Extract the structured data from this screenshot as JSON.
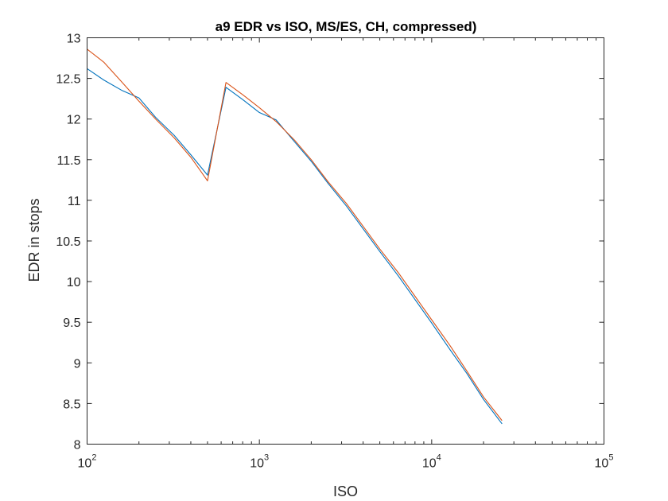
{
  "chart_data": {
    "type": "line",
    "title": "a9 EDR vs ISO, MS/ES, CH, compressed)",
    "xlabel": "ISO",
    "ylabel": "EDR in stops",
    "xscale": "log",
    "xlim": [
      100,
      100000
    ],
    "ylim": [
      8,
      13
    ],
    "grid": false,
    "legend": "none",
    "x_ticks": [
      {
        "value": 100,
        "base": "10",
        "exp": "2"
      },
      {
        "value": 1000,
        "base": "10",
        "exp": "3"
      },
      {
        "value": 10000,
        "base": "10",
        "exp": "4"
      },
      {
        "value": 100000,
        "base": "10",
        "exp": "5"
      }
    ],
    "y_ticks": [
      {
        "value": 8,
        "label": "8"
      },
      {
        "value": 8.5,
        "label": "8.5"
      },
      {
        "value": 9,
        "label": "9"
      },
      {
        "value": 9.5,
        "label": "9.5"
      },
      {
        "value": 10,
        "label": "10"
      },
      {
        "value": 10.5,
        "label": "10.5"
      },
      {
        "value": 11,
        "label": "11"
      },
      {
        "value": 11.5,
        "label": "11.5"
      },
      {
        "value": 12,
        "label": "12"
      },
      {
        "value": 12.5,
        "label": "12.5"
      },
      {
        "value": 13,
        "label": "13"
      }
    ],
    "series": [
      {
        "color": "#0072BD",
        "x": [
          100,
          125,
          160,
          200,
          250,
          320,
          400,
          500,
          640,
          800,
          1000,
          1250,
          1600,
          2000,
          2500,
          3200,
          4000,
          5000,
          6400,
          8000,
          10000,
          12800,
          16000,
          20000,
          25600
        ],
        "y": [
          12.62,
          12.48,
          12.35,
          12.26,
          12.02,
          11.8,
          11.56,
          11.31,
          12.39,
          12.24,
          12.08,
          11.99,
          11.72,
          11.48,
          11.21,
          10.93,
          10.65,
          10.37,
          10.07,
          9.78,
          9.49,
          9.16,
          8.87,
          8.55,
          8.25
        ]
      },
      {
        "color": "#D95319",
        "x": [
          100,
          125,
          160,
          200,
          250,
          320,
          400,
          500,
          640,
          800,
          1000,
          1250,
          1600,
          2000,
          2500,
          3200,
          4000,
          5000,
          6400,
          8000,
          10000,
          12800,
          16000,
          20000,
          25600
        ],
        "y": [
          12.86,
          12.7,
          12.45,
          12.22,
          12.0,
          11.77,
          11.53,
          11.24,
          12.45,
          12.3,
          12.14,
          11.97,
          11.74,
          11.5,
          11.23,
          10.96,
          10.68,
          10.4,
          10.11,
          9.82,
          9.53,
          9.21,
          8.9,
          8.58,
          8.29
        ]
      }
    ]
  }
}
